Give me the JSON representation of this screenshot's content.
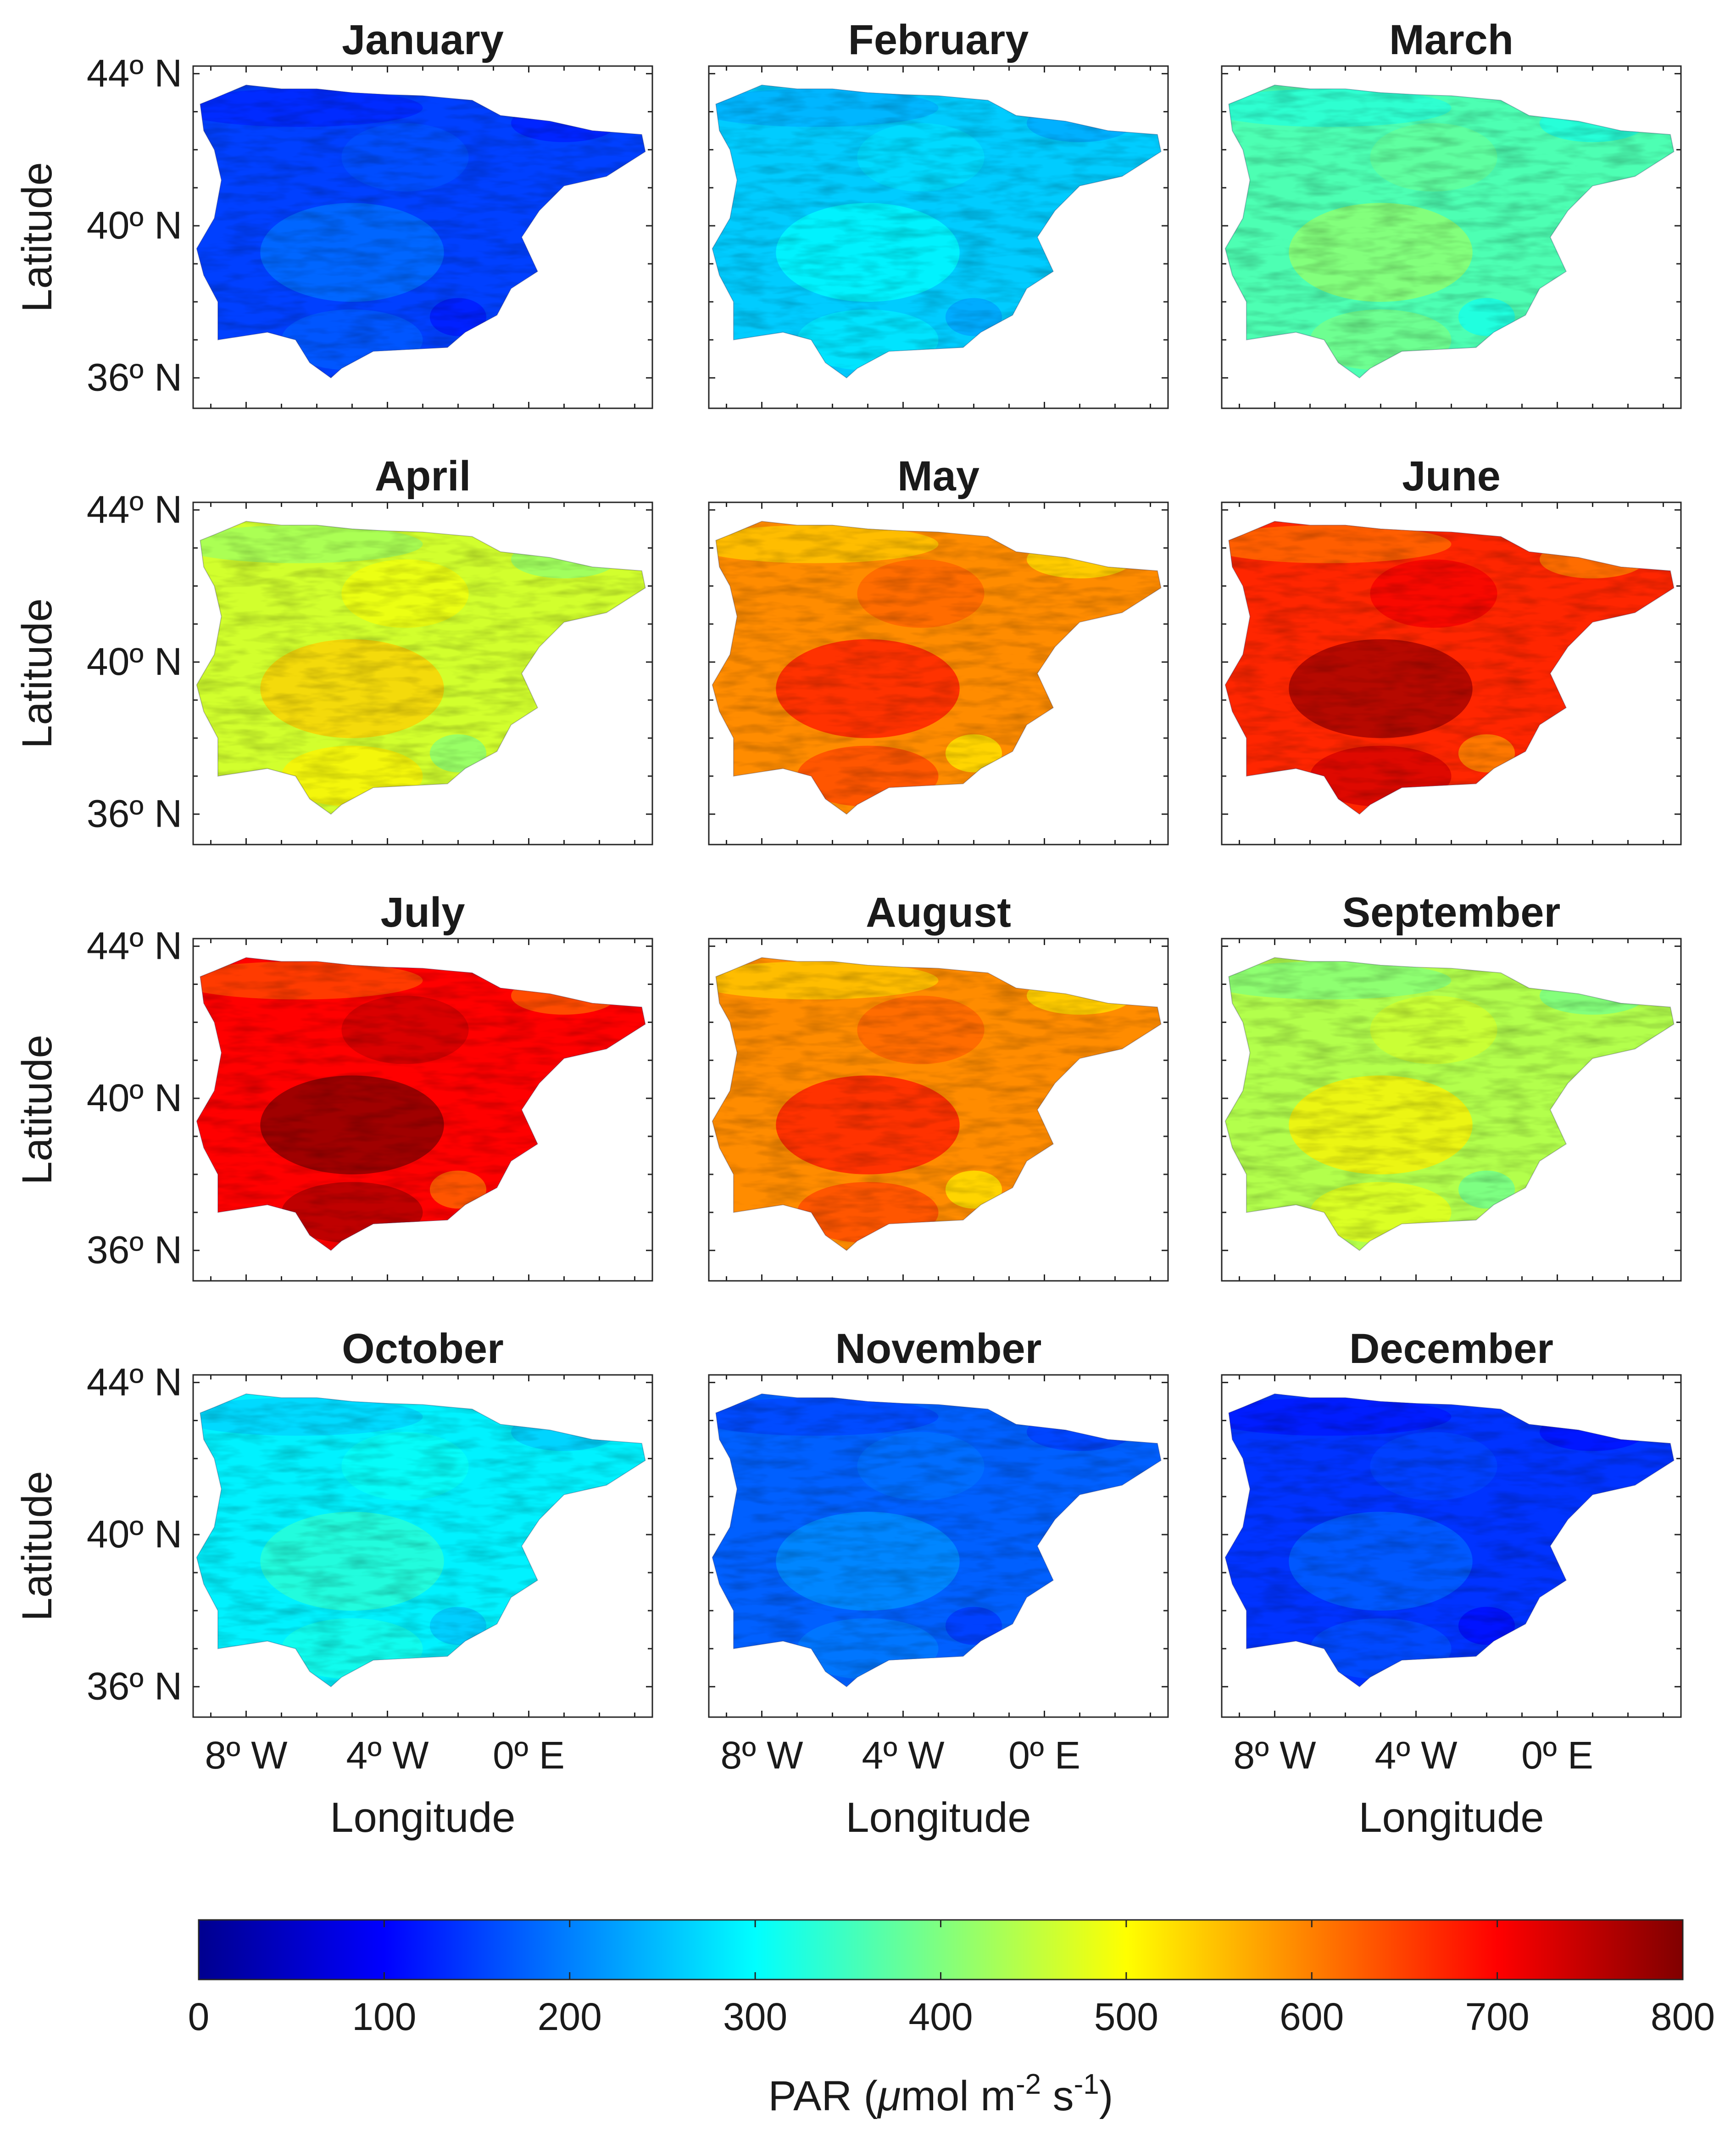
{
  "chart_data": {
    "type": "heatmap",
    "description_units": "PAR",
    "panels": [
      {
        "title": "January",
        "mean": 150
      },
      {
        "title": "February",
        "mean": 260
      },
      {
        "title": "March",
        "mean": 360
      },
      {
        "title": "April",
        "mean": 465
      },
      {
        "title": "May",
        "mean": 590
      },
      {
        "title": "June",
        "mean": 670
      },
      {
        "title": "July",
        "mean": 700
      },
      {
        "title": "August",
        "mean": 590
      },
      {
        "title": "September",
        "mean": 440
      },
      {
        "title": "October",
        "mean": 290
      },
      {
        "title": "November",
        "mean": 175
      },
      {
        "title": "December",
        "mean": 140
      }
    ],
    "lat_ticks": [
      "44º N",
      "40º N",
      "36º N"
    ],
    "lat_tick_values": [
      44,
      40,
      36
    ],
    "lon_ticks": [
      "8º W",
      "4º W",
      "0º E"
    ],
    "lon_tick_values": [
      -8,
      -4,
      0
    ],
    "xlim": [
      -9.5,
      3.5
    ],
    "ylim": [
      35.2,
      44.2
    ],
    "xlabel": "Longitude",
    "ylabel": "Latitude",
    "colorbar": {
      "label_prefix": "PAR (",
      "label_mu": "μ",
      "label_mol": "mol m",
      "label_exp1": "-2",
      "label_s": " s",
      "label_exp2": "-1",
      "label_suffix": ")",
      "range": [
        0,
        800
      ],
      "ticks": [
        0,
        100,
        200,
        300,
        400,
        500,
        600,
        700,
        800
      ],
      "tick_labels": [
        "0",
        "100",
        "200",
        "300",
        "400",
        "500",
        "600",
        "700",
        "800"
      ],
      "colormap": "jet"
    }
  }
}
